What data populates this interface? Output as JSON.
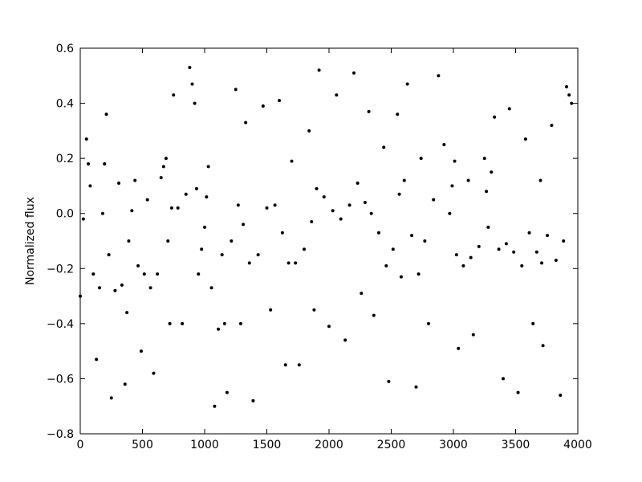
{
  "chart_data": {
    "type": "scatter",
    "ylabel": "Normalized flux",
    "color": "#000000",
    "xlim": [
      0,
      4000
    ],
    "xticks": [
      0,
      500,
      1000,
      1500,
      2000,
      2500,
      3000,
      3500,
      4000
    ],
    "ylim": [
      -0.8,
      0.6
    ],
    "yticks": [
      {
        "value": -0.8,
        "label": "−0.8"
      },
      {
        "value": -0.6,
        "label": "−0.6"
      },
      {
        "value": -0.4,
        "label": "−0.4"
      },
      {
        "value": -0.2,
        "label": "−0.2"
      },
      {
        "value": 0,
        "label": "0.0"
      },
      0.2,
      0.4,
      0.6
    ],
    "x": [
      0,
      25,
      50,
      65,
      80,
      105,
      130,
      155,
      180,
      195,
      210,
      230,
      250,
      280,
      310,
      335,
      360,
      375,
      390,
      415,
      440,
      465,
      490,
      515,
      540,
      565,
      590,
      620,
      650,
      670,
      690,
      705,
      720,
      735,
      750,
      785,
      820,
      850,
      880,
      900,
      920,
      935,
      950,
      975,
      1000,
      1015,
      1030,
      1055,
      1080,
      1110,
      1140,
      1160,
      1180,
      1215,
      1250,
      1270,
      1290,
      1310,
      1330,
      1360,
      1390,
      1430,
      1470,
      1500,
      1530,
      1565,
      1600,
      1625,
      1650,
      1675,
      1700,
      1730,
      1760,
      1800,
      1840,
      1860,
      1880,
      1900,
      1920,
      1960,
      2000,
      2030,
      2060,
      2095,
      2130,
      2165,
      2200,
      2230,
      2260,
      2290,
      2320,
      2340,
      2360,
      2400,
      2440,
      2460,
      2480,
      2515,
      2550,
      2565,
      2580,
      2605,
      2630,
      2665,
      2700,
      2720,
      2740,
      2770,
      2800,
      2840,
      2880,
      2925,
      2970,
      2990,
      3010,
      3025,
      3040,
      3080,
      3120,
      3140,
      3160,
      3205,
      3250,
      3265,
      3280,
      3305,
      3330,
      3365,
      3400,
      3425,
      3450,
      3485,
      3520,
      3550,
      3580,
      3610,
      3640,
      3670,
      3700,
      3710,
      3720,
      3755,
      3790,
      3825,
      3860,
      3885,
      3910,
      3930,
      3950
    ],
    "y": [
      -0.3,
      -0.02,
      0.27,
      0.18,
      0.1,
      -0.22,
      -0.53,
      -0.27,
      0.0,
      0.18,
      0.36,
      -0.15,
      -0.67,
      -0.28,
      0.11,
      -0.26,
      -0.62,
      -0.36,
      -0.1,
      0.01,
      0.12,
      -0.19,
      -0.5,
      -0.22,
      0.05,
      -0.27,
      -0.58,
      -0.22,
      0.13,
      0.17,
      0.2,
      -0.1,
      -0.4,
      0.02,
      0.43,
      0.02,
      -0.4,
      0.07,
      0.53,
      0.47,
      0.4,
      0.09,
      -0.22,
      -0.13,
      -0.05,
      0.06,
      0.17,
      -0.27,
      -0.7,
      -0.42,
      -0.15,
      -0.4,
      -0.65,
      -0.1,
      0.45,
      0.03,
      -0.4,
      -0.04,
      0.33,
      -0.18,
      -0.68,
      -0.15,
      0.39,
      0.02,
      -0.35,
      0.03,
      0.41,
      -0.07,
      -0.55,
      -0.18,
      0.19,
      -0.18,
      -0.55,
      -0.13,
      0.3,
      -0.03,
      -0.35,
      0.09,
      0.52,
      0.06,
      -0.41,
      0.01,
      0.43,
      -0.02,
      -0.46,
      0.03,
      0.51,
      0.11,
      -0.29,
      0.04,
      0.37,
      0.0,
      -0.37,
      -0.07,
      0.24,
      -0.19,
      -0.61,
      -0.13,
      0.36,
      0.07,
      -0.23,
      0.12,
      0.47,
      -0.08,
      -0.63,
      -0.22,
      0.2,
      -0.1,
      -0.4,
      0.05,
      0.5,
      0.25,
      0.0,
      0.1,
      0.19,
      -0.15,
      -0.49,
      -0.19,
      0.12,
      -0.16,
      -0.44,
      -0.12,
      0.2,
      0.08,
      -0.05,
      0.15,
      0.35,
      -0.13,
      -0.6,
      -0.11,
      0.38,
      -0.14,
      -0.65,
      -0.19,
      0.27,
      -0.07,
      -0.4,
      -0.14,
      0.12,
      -0.18,
      -0.48,
      -0.08,
      0.32,
      -0.17,
      -0.66,
      -0.1,
      0.46,
      0.43,
      0.4
    ]
  }
}
